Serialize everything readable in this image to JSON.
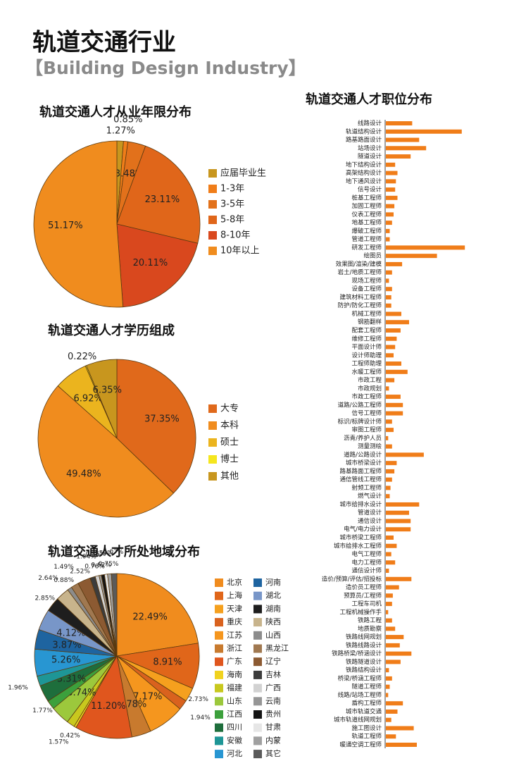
{
  "header": {
    "title": "轨道交通行业",
    "subtitle": "【Building Design Industry】"
  },
  "chart_data": [
    {
      "type": "pie",
      "title": "轨道交通人才从业年限分布",
      "categories": [
        "应届毕业生",
        "1-3年",
        "3-5年",
        "5-8年",
        "8-10年",
        "10年以上"
      ],
      "values": [
        1.27,
        0.85,
        3.48,
        23.11,
        20.11,
        51.17
      ],
      "value_labels": [
        "1.27%",
        "0.85%",
        "3.48%",
        "23.11%",
        "20.11%",
        "51.17%"
      ],
      "colors": [
        "#c8961e",
        "#f07d19",
        "#e2711b",
        "#e0661a",
        "#d9481e",
        "#f08c1e"
      ]
    },
    {
      "type": "pie",
      "title": "轨道交通人才学历组成",
      "categories": [
        "大专",
        "本科",
        "硕士",
        "博士",
        "其他"
      ],
      "values": [
        37.35,
        49.48,
        6.92,
        0.22,
        6.35
      ],
      "value_labels": [
        "37.35%",
        "49.48%",
        "6.92%",
        "0.22%",
        "6.35%"
      ],
      "colors": [
        "#e0691b",
        "#f08c1e",
        "#ebb41e",
        "#f5e61e",
        "#c8961e"
      ]
    },
    {
      "type": "pie",
      "title": "轨道交通人才所处地域分布",
      "categories": [
        "北京",
        "上海",
        "天津",
        "重庆",
        "江苏",
        "浙江",
        "广东",
        "海南",
        "福建",
        "山东",
        "江西",
        "四川",
        "安徽",
        "河北",
        "河南",
        "湖北",
        "湖南",
        "陕西",
        "山西",
        "黑龙江",
        "辽宁",
        "吉林",
        "广西",
        "云南",
        "贵州",
        "甘肃",
        "内蒙",
        "其它"
      ],
      "values": [
        22.49,
        8.91,
        2.73,
        1.94,
        7.17,
        3.78,
        11.2,
        0.42,
        1.57,
        3.74,
        1.77,
        3.31,
        1.96,
        5.26,
        3.87,
        4.12,
        2.85,
        2.64,
        0.88,
        1.49,
        2.52,
        1.04,
        0.76,
        0.45,
        0.62,
        0.59,
        0.75,
        1.07
      ],
      "value_labels": [
        "22.49%",
        "8.91%",
        "2.73%",
        "1.94%",
        "7.17%",
        "3.78%",
        "11.20%",
        "0.42%",
        "1.57%",
        "3.74%",
        "1.77%",
        "3.31%",
        "1.96%",
        "5.26%",
        "3.87%",
        "4.12%",
        "2.85%",
        "2.64%",
        "0.88%",
        "1.49%",
        "2.52%",
        "1.04%",
        "0.76%",
        "0.45%",
        "0.62%",
        "0.59%",
        "0.75%",
        "1.07%"
      ],
      "colors": [
        "#f08c1e",
        "#e0661a",
        "#f5a01e",
        "#d9621e",
        "#f5961e",
        "#c87a2e",
        "#e0561e",
        "#f0d21e",
        "#c8c81e",
        "#9cc83c",
        "#3ca03c",
        "#1e6e3c",
        "#1e9696",
        "#2896d2",
        "#1e64a0",
        "#7896c8",
        "#1e1e1e",
        "#c8b48c",
        "#8c8c8c",
        "#a07850",
        "#8c5a32",
        "#3c3c3c",
        "#d2d2d2",
        "#969696",
        "#141414",
        "#e6e6e6",
        "#a0a0a0",
        "#5a5a5a"
      ]
    },
    {
      "type": "bar",
      "horizontal": true,
      "title": "轨道交通人才职位分布",
      "color": "#f07d19",
      "xlim": [
        0,
        110
      ],
      "categories": [
        "线路设计",
        "轨道结构设计",
        "路基路面设计",
        "站场设计",
        "隧道设计",
        "地下结构设计",
        "高架结构设计",
        "地下通风设计",
        "信号设计",
        "桩基工程师",
        "加固工程师",
        "仪表工程师",
        "地基工程师",
        "爆破工程师",
        "管道工程师",
        "研发工程师",
        "绘图员",
        "效果图/渲染/建模",
        "岩土/地质工程师",
        "现场工程师",
        "设备工程师",
        "建筑材料工程师",
        "防护/防化工程师",
        "机械工程师",
        "钢筋翻样",
        "配套工程师",
        "维修工程师",
        "平面设计师",
        "设计师助理",
        "工程师助理",
        "水暖工程师",
        "市政工程",
        "市政规划",
        "市政工程师",
        "道路/公路工程师",
        "信号工程师",
        "标识/标牌设计师",
        "审图工程师",
        "沥青/养护人员",
        "测量测绘",
        "道路/公路设计",
        "城市桥梁设计",
        "路基路面工程师",
        "通信管线工程师",
        "射频工程师",
        "燃气设计",
        "城市给排水设计",
        "管道设计",
        "通信设计",
        "电气/电力设计",
        "城市桥梁工程师",
        "城市给排水工程师",
        "电气工程师",
        "电力工程师",
        "通信设计师",
        "造价/预算/评估/招投标",
        "造价员工程师",
        "预算员/工程师",
        "工程车司机",
        "工程机械操作手",
        "铁路工程",
        "地质勘察",
        "铁路线网规划",
        "铁路线路设计",
        "铁路桥梁/桥涵设计",
        "铁路隧道设计",
        "铁路结构设计",
        "桥梁/桥涵工程师",
        "隧道工程师",
        "线路/站场工程师",
        "盾构工程师",
        "城市轨道交通",
        "城市轨道线网规划",
        "施工图设计",
        "轨道工程师",
        "暖通空调工程师"
      ],
      "values": [
        34,
        98,
        43,
        52,
        32,
        12,
        15,
        13,
        12,
        15,
        11,
        10,
        8,
        5,
        5,
        102,
        66,
        21,
        8,
        4,
        8,
        7,
        7,
        20,
        30,
        19,
        14,
        12,
        10,
        20,
        28,
        11,
        4,
        19,
        22,
        22,
        8,
        10,
        3,
        8,
        49,
        14,
        11,
        8,
        6,
        5,
        43,
        30,
        32,
        32,
        10,
        14,
        7,
        12,
        4,
        33,
        17,
        9,
        8,
        3,
        8,
        12,
        23,
        18,
        33,
        19,
        4,
        8,
        5,
        3,
        22,
        15,
        7,
        36,
        13,
        40
      ]
    }
  ]
}
